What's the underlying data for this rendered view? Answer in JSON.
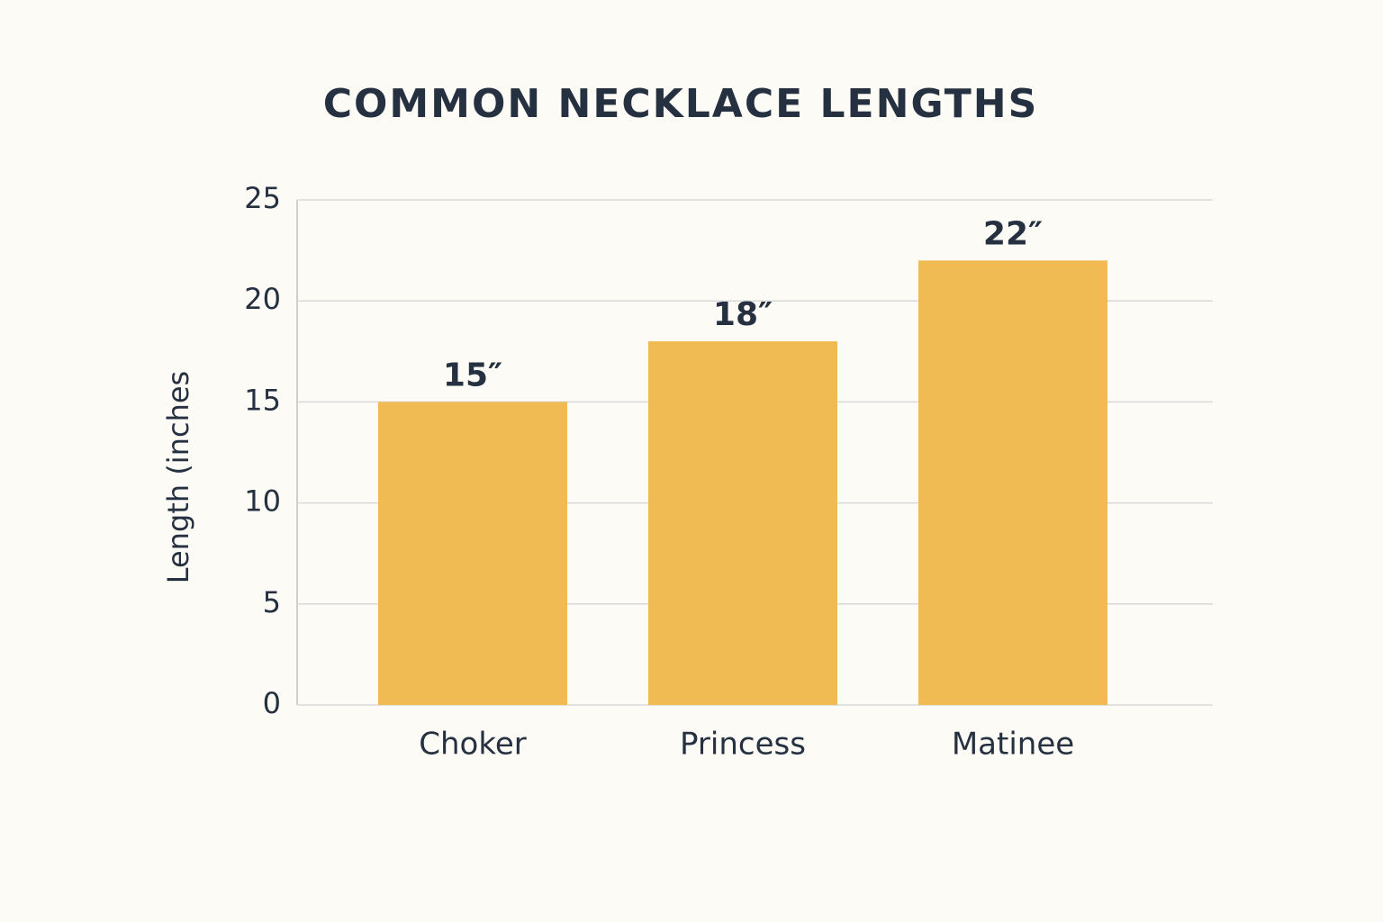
{
  "chart_data": {
    "type": "bar",
    "title": "COMMON NECKLACE LENGTHS",
    "y_label": "Length (inches",
    "categories": [
      "Choker",
      "Princess",
      "Matinee"
    ],
    "values": [
      15,
      18,
      22
    ],
    "value_labels": [
      "15″",
      "18″",
      "22″"
    ],
    "color": "#f0bb52",
    "ylim": [
      0,
      25
    ],
    "yticks": [
      0,
      5,
      10,
      15,
      20,
      25
    ],
    "grid": true
  }
}
